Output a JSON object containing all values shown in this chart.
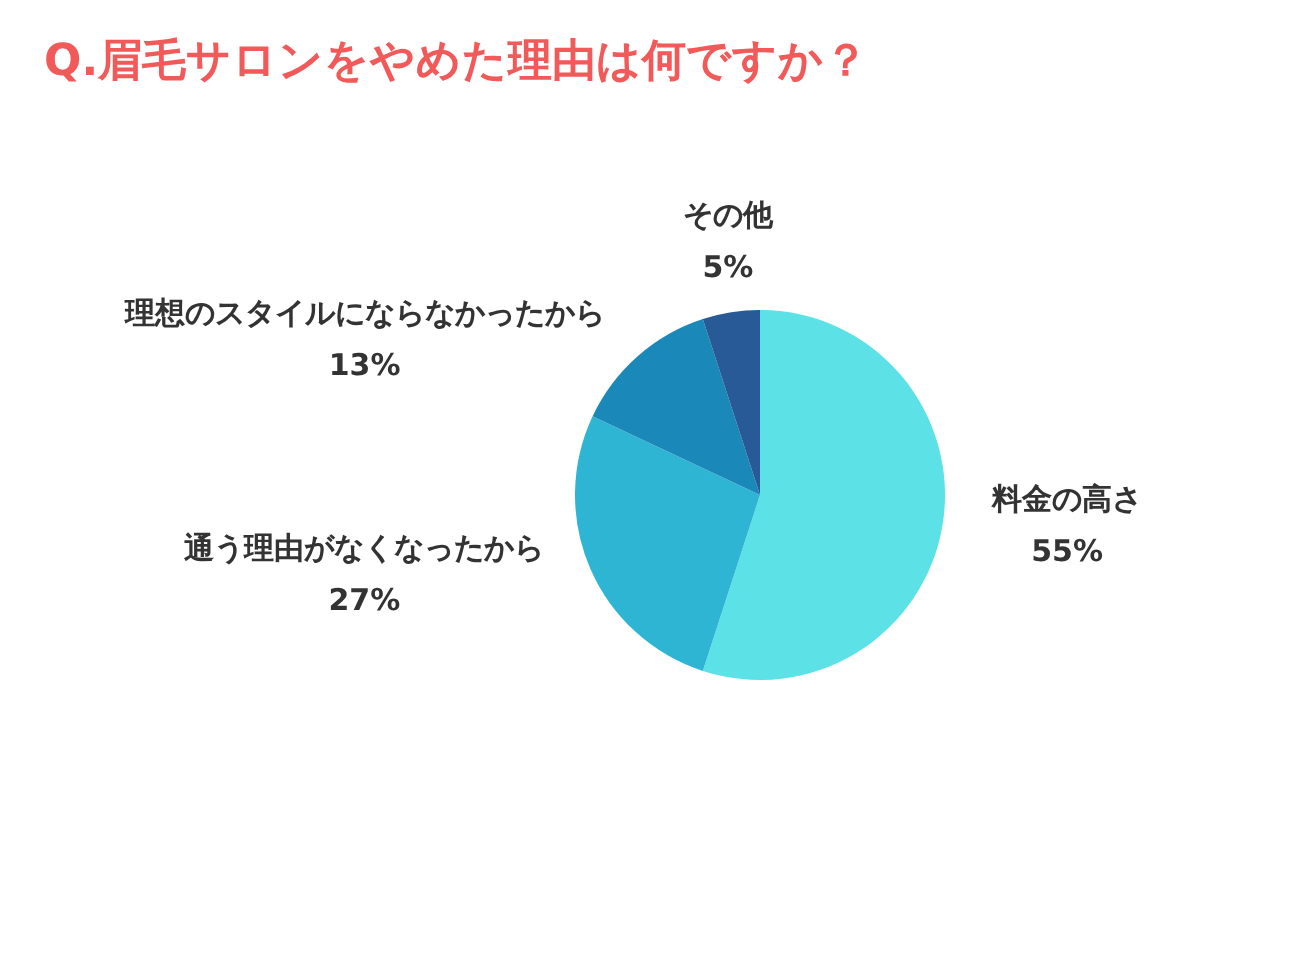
{
  "chart_data": {
    "type": "pie",
    "title": "Q.眉毛サロンをやめた理由は何ですか？",
    "categories": [
      "料金の高さ",
      "通う理由がなくなったから",
      "理想のスタイルにならなかったから",
      "その他"
    ],
    "values": [
      55,
      27,
      13,
      5
    ],
    "colors": [
      "#5ce1e6",
      "#2fb5d4",
      "#1a88b8",
      "#275a96"
    ],
    "value_labels": [
      "55%",
      "27%",
      "13%",
      "5%"
    ]
  }
}
